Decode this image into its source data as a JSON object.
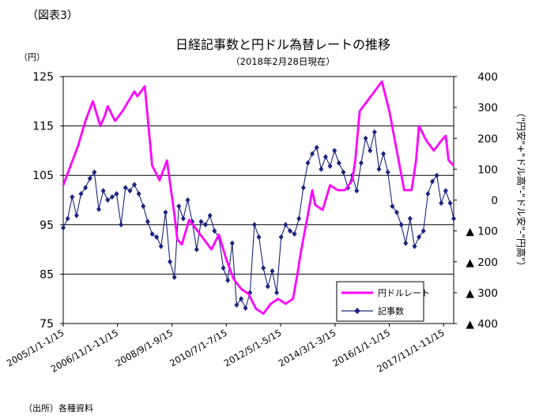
{
  "figure_label": "（図表3）",
  "source_note": "（出所）各種資料",
  "chart_data": {
    "type": "line",
    "title": "日経記事数と円ドル為替レートの推移",
    "subtitle": "（2018年2月28日現在）",
    "left_axis": {
      "unit_label": "（円）",
      "ylim": [
        75,
        125
      ],
      "ticks": [
        125,
        115,
        105,
        95,
        85,
        75
      ],
      "gridlines": [
        115,
        105,
        95,
        85
      ]
    },
    "right_axis": {
      "label": "（\"円安\"+\"ドル高\"-\"ドル安\"-\"円高\"）",
      "ylim": [
        -400,
        400
      ],
      "ticks": [
        {
          "value": 400,
          "label": "400"
        },
        {
          "value": 300,
          "label": "300"
        },
        {
          "value": 200,
          "label": "200"
        },
        {
          "value": 100,
          "label": "100"
        },
        {
          "value": 0,
          "label": "0"
        },
        {
          "value": -100,
          "label": "▲ 100"
        },
        {
          "value": -200,
          "label": "▲ 200"
        },
        {
          "value": -300,
          "label": "▲ 300"
        },
        {
          "value": -400,
          "label": "▲ 400"
        }
      ]
    },
    "x_axis": {
      "range": [
        2005.0,
        2018.17
      ],
      "ticks": [
        {
          "label": "2005/1/1-1/15",
          "t": 2005.0
        },
        {
          "label": "2006/11/1-11/15",
          "t": 2006.83
        },
        {
          "label": "2008/9/1-9/15",
          "t": 2008.67
        },
        {
          "label": "2010/7/1-7/15",
          "t": 2010.5
        },
        {
          "label": "2012/5/1-5/15",
          "t": 2012.33
        },
        {
          "label": "2014/3/1-3/15",
          "t": 2014.17
        },
        {
          "label": "2016/1/1-1/15",
          "t": 2016.0
        },
        {
          "label": "2017/11/1-11/15",
          "t": 2017.83
        }
      ]
    },
    "legend": {
      "position": "bottom-right",
      "entries": [
        {
          "name": "円ドルレート",
          "color": "#ff00ff",
          "marker": "none"
        },
        {
          "name": "記事数",
          "color": "#1a237e",
          "marker": "diamond"
        }
      ]
    },
    "series": [
      {
        "name": "円ドルレート",
        "axis": "left",
        "color": "#ff00ff",
        "x": [
          2005.0,
          2005.25,
          2005.5,
          2005.75,
          2006.0,
          2006.25,
          2006.4,
          2006.5,
          2006.75,
          2007.0,
          2007.2,
          2007.4,
          2007.5,
          2007.75,
          2008.0,
          2008.25,
          2008.5,
          2008.75,
          2008.85,
          2009.0,
          2009.25,
          2009.5,
          2009.75,
          2010.0,
          2010.25,
          2010.5,
          2010.75,
          2011.0,
          2011.25,
          2011.5,
          2011.75,
          2012.0,
          2012.25,
          2012.5,
          2012.75,
          2012.9,
          2013.0,
          2013.25,
          2013.4,
          2013.5,
          2013.75,
          2014.0,
          2014.25,
          2014.5,
          2014.75,
          2014.85,
          2015.0,
          2015.25,
          2015.5,
          2015.75,
          2016.0,
          2016.25,
          2016.5,
          2016.75,
          2016.9,
          2017.0,
          2017.25,
          2017.5,
          2017.75,
          2017.9,
          2018.0,
          2018.17
        ],
        "values": [
          103,
          107,
          111,
          116,
          120,
          115,
          117,
          119,
          116,
          118,
          120,
          122,
          121,
          123,
          107,
          104,
          108,
          97,
          92,
          91,
          96,
          94,
          92,
          90,
          93,
          88,
          84,
          82,
          81,
          78,
          77,
          79,
          80,
          79,
          80,
          85,
          89,
          97,
          102,
          99,
          98,
          103,
          102,
          102,
          104,
          108,
          118,
          120,
          122,
          124,
          118,
          110,
          102,
          102,
          108,
          115,
          112,
          110,
          112,
          113,
          108,
          107
        ]
      },
      {
        "name": "記事数",
        "axis": "right",
        "color": "#1a237e",
        "x": [
          2005.0,
          2005.15,
          2005.3,
          2005.45,
          2005.6,
          2005.75,
          2005.9,
          2006.05,
          2006.2,
          2006.35,
          2006.5,
          2006.65,
          2006.8,
          2006.95,
          2007.1,
          2007.25,
          2007.4,
          2007.55,
          2007.7,
          2007.85,
          2008.0,
          2008.15,
          2008.3,
          2008.45,
          2008.6,
          2008.75,
          2008.9,
          2009.05,
          2009.2,
          2009.35,
          2009.5,
          2009.65,
          2009.8,
          2009.95,
          2010.1,
          2010.25,
          2010.4,
          2010.55,
          2010.7,
          2010.85,
          2011.0,
          2011.15,
          2011.3,
          2011.45,
          2011.6,
          2011.75,
          2011.9,
          2012.05,
          2012.2,
          2012.35,
          2012.5,
          2012.65,
          2012.8,
          2012.95,
          2013.1,
          2013.25,
          2013.4,
          2013.55,
          2013.7,
          2013.85,
          2014.0,
          2014.15,
          2014.3,
          2014.45,
          2014.6,
          2014.75,
          2014.9,
          2015.05,
          2015.2,
          2015.35,
          2015.5,
          2015.65,
          2015.8,
          2015.95,
          2016.1,
          2016.25,
          2016.4,
          2016.55,
          2016.7,
          2016.85,
          2017.0,
          2017.15,
          2017.3,
          2017.45,
          2017.6,
          2017.75,
          2017.9,
          2018.05,
          2018.17
        ],
        "values": [
          -90,
          -60,
          10,
          -50,
          20,
          40,
          70,
          90,
          -30,
          30,
          0,
          10,
          20,
          -80,
          40,
          30,
          50,
          20,
          -20,
          -70,
          -110,
          -120,
          -150,
          -40,
          -200,
          -250,
          -20,
          -60,
          0,
          -70,
          -160,
          -70,
          -80,
          -50,
          -100,
          -120,
          -220,
          -260,
          -140,
          -340,
          -320,
          -350,
          -300,
          -80,
          -120,
          -220,
          -280,
          -230,
          -300,
          -120,
          -80,
          -100,
          -110,
          -60,
          40,
          120,
          150,
          170,
          100,
          140,
          110,
          160,
          120,
          90,
          40,
          80,
          30,
          120,
          200,
          160,
          220,
          100,
          150,
          90,
          -20,
          -40,
          -80,
          -140,
          -60,
          -150,
          -120,
          -100,
          20,
          60,
          80,
          -10,
          30,
          -10,
          -60
        ]
      }
    ]
  }
}
